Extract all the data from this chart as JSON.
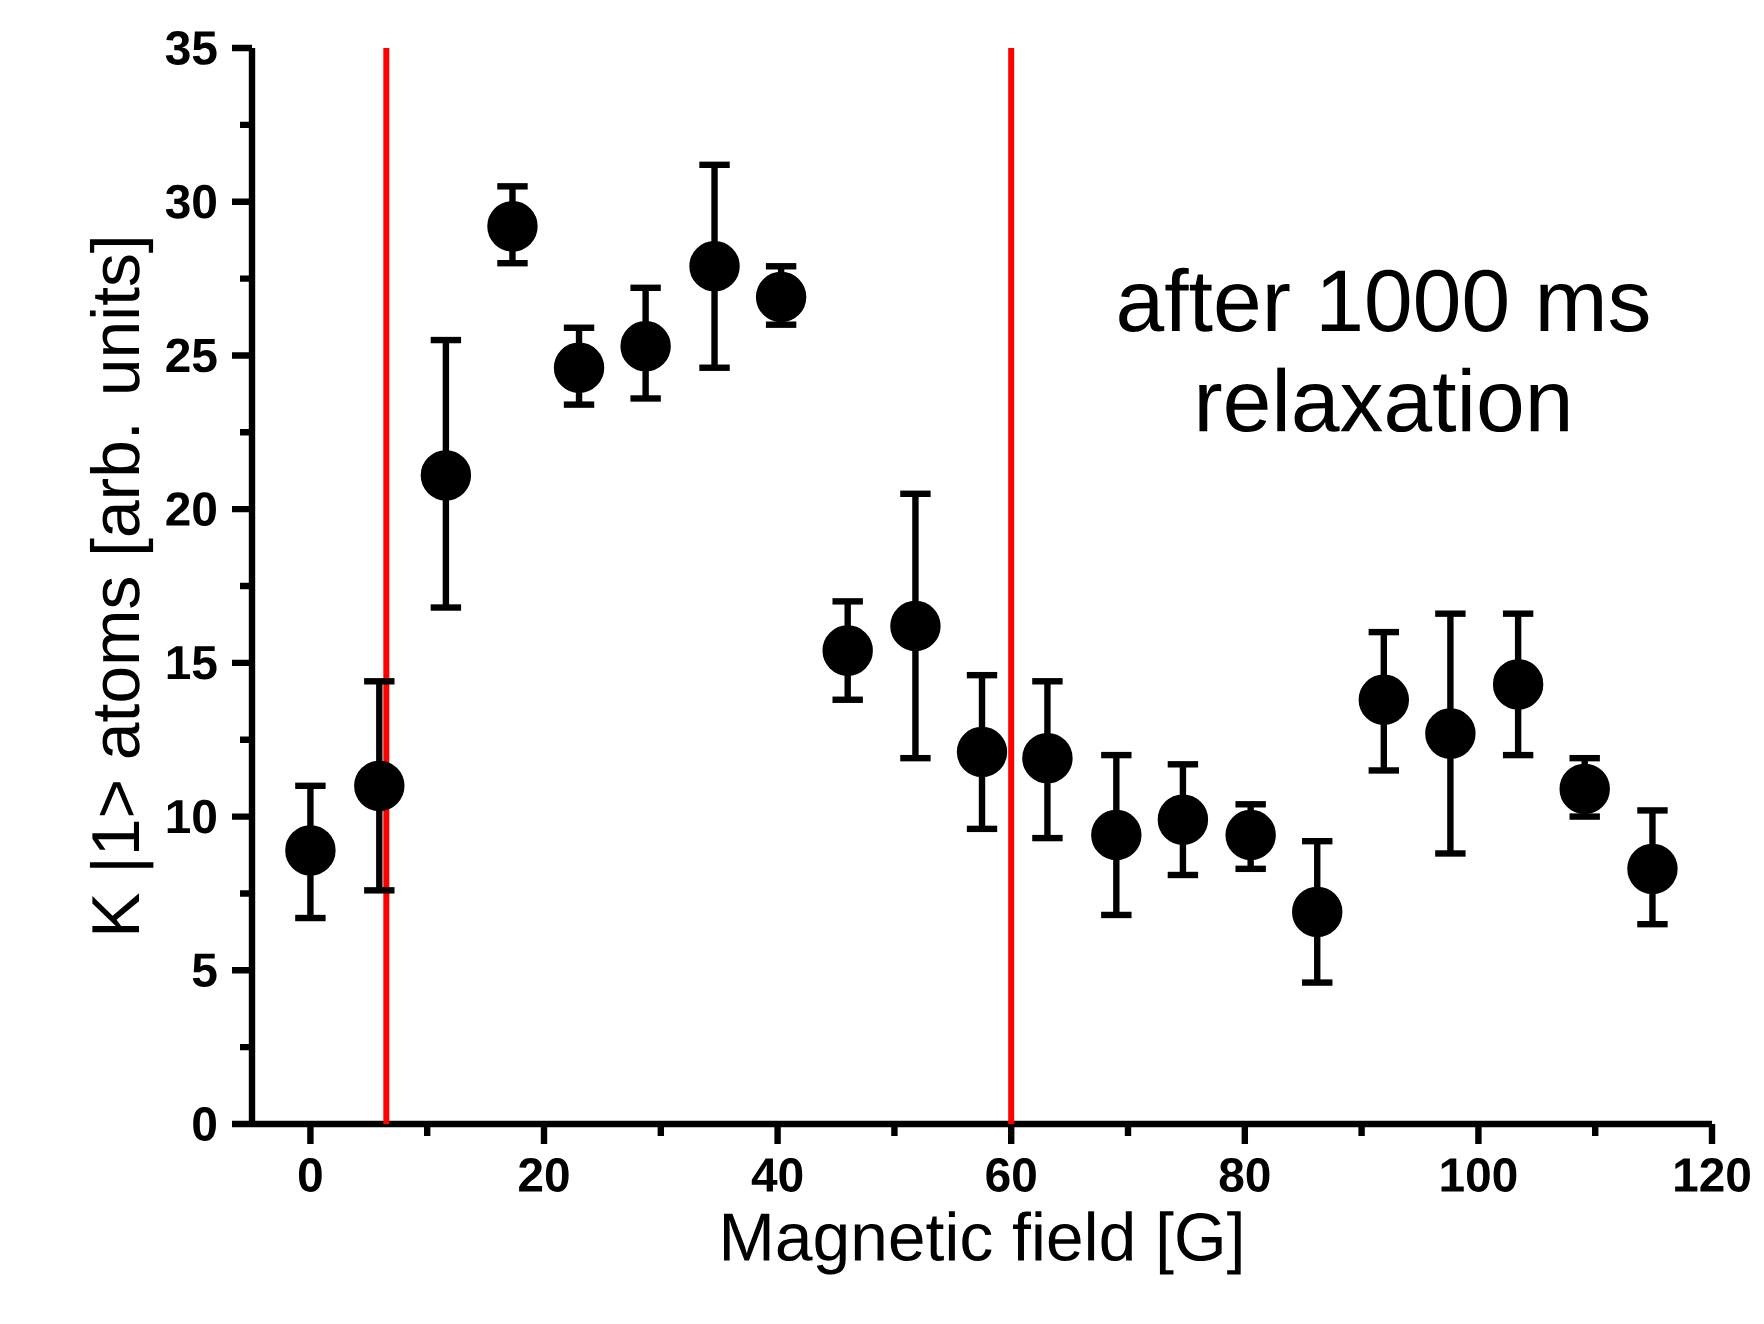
{
  "chart_data": {
    "type": "scatter",
    "xlabel": "Magnetic field [G]",
    "ylabel": "K |1> atoms [arb. units]",
    "x": [
      0,
      5.9,
      11.6,
      17.3,
      23.0,
      28.7,
      34.6,
      40.3,
      46.0,
      51.8,
      57.5,
      63.1,
      69.0,
      74.7,
      80.5,
      86.2,
      91.9,
      97.6,
      103.4,
      109.1,
      114.9
    ],
    "series": [
      {
        "color": "#000000",
        "values": [
          8.9,
          11.0,
          21.1,
          29.2,
          24.6,
          25.3,
          27.9,
          26.9,
          15.4,
          16.2,
          12.1,
          11.9,
          9.4,
          9.9,
          9.4,
          6.9,
          13.8,
          12.7,
          14.3,
          10.9,
          8.3
        ],
        "errors": [
          [
            6.7,
            11.0
          ],
          [
            7.6,
            14.4
          ],
          [
            16.8,
            25.5
          ],
          [
            28.0,
            30.5
          ],
          [
            23.4,
            25.9
          ],
          [
            23.6,
            27.2
          ],
          [
            24.6,
            31.2
          ],
          [
            26.0,
            27.9
          ],
          [
            13.8,
            17.0
          ],
          [
            11.9,
            20.5
          ],
          [
            9.6,
            14.6
          ],
          [
            9.3,
            14.4
          ],
          [
            6.8,
            12.0
          ],
          [
            8.1,
            11.7
          ],
          [
            8.3,
            10.4
          ],
          [
            4.6,
            9.2
          ],
          [
            11.5,
            16.0
          ],
          [
            8.8,
            16.6
          ],
          [
            12.0,
            16.6
          ],
          [
            10.0,
            11.9
          ],
          [
            6.5,
            10.2
          ]
        ]
      }
    ],
    "xlim": [
      -5,
      120
    ],
    "ylim": [
      0,
      35
    ],
    "xticks": [
      0,
      20,
      40,
      60,
      80,
      100,
      120
    ],
    "yticks": [
      0,
      5,
      10,
      15,
      20,
      25,
      30,
      35
    ],
    "ref_lines": [
      {
        "axis": "x",
        "value": 6.5,
        "color": "#ff0000"
      },
      {
        "axis": "x",
        "value": 60,
        "color": "#ff0000"
      }
    ],
    "annotations": [
      "after 1000 ms",
      "relaxation"
    ],
    "marker": "circle",
    "grid": false
  }
}
